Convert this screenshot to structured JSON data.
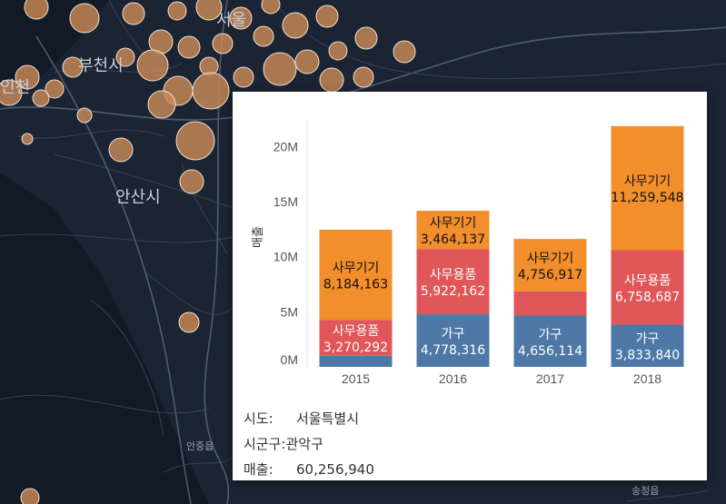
{
  "map": {
    "labels": [
      "인천",
      "부천시",
      "서울",
      "안산시",
      "안중읍",
      "송정읍"
    ],
    "bubble_color": "#c98a57"
  },
  "tooltip": {
    "rows": [
      {
        "key": "시도:",
        "value": "서울특별시"
      },
      {
        "key": "시군구:",
        "value": "관악구"
      },
      {
        "key": "매출:",
        "value": "60,256,940"
      }
    ]
  },
  "chart_data": {
    "type": "bar",
    "stacked": true,
    "categories": [
      "2015",
      "2016",
      "2017",
      "2018"
    ],
    "ylabel": "매출",
    "ylim": [
      0,
      22500000
    ],
    "yticks": [
      0,
      5000000,
      10000000,
      15000000,
      20000000
    ],
    "ytick_labels": [
      "0M",
      "5M",
      "10M",
      "15M",
      "20M"
    ],
    "series": [
      {
        "name": "가구",
        "color": "#4e79a7",
        "values": [
          1000000,
          4778316,
          4656114,
          3833840
        ],
        "labels": [
          "",
          "4,778,316",
          "4,656,114",
          "3,833,840"
        ]
      },
      {
        "name": "사무용품",
        "color": "#e15759",
        "values": [
          3270292,
          5922162,
          2200000,
          6758687
        ],
        "labels": [
          "3,270,292",
          "5,922,162",
          "",
          "6,758,687"
        ]
      },
      {
        "name": "사무기기",
        "color": "#f28e2b",
        "values": [
          8184163,
          3464137,
          4756917,
          11259548
        ],
        "labels": [
          "8,184,163",
          "3,464,137",
          "4,756,917",
          "11,259,548"
        ]
      }
    ]
  }
}
